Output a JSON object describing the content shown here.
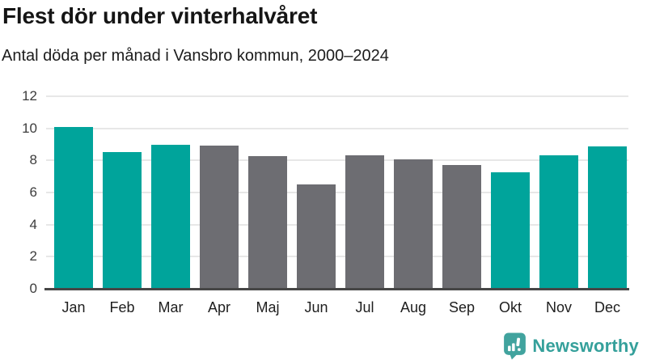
{
  "chart_data": {
    "type": "bar",
    "title": "Flest dör under vinterhalvåret",
    "subtitle": "Antal döda per månad i Vansbro kommun, 2000–2024",
    "categories": [
      "Jan",
      "Feb",
      "Mar",
      "Apr",
      "Maj",
      "Jun",
      "Jul",
      "Aug",
      "Sep",
      "Okt",
      "Nov",
      "Dec"
    ],
    "values": [
      10.1,
      8.5,
      9.0,
      8.9,
      8.25,
      6.5,
      8.3,
      8.05,
      7.7,
      7.25,
      8.3,
      8.85
    ],
    "bar_colors": [
      "#00a49b",
      "#00a49b",
      "#00a49b",
      "#6d6d72",
      "#6d6d72",
      "#6d6d72",
      "#6d6d72",
      "#6d6d72",
      "#6d6d72",
      "#00a49b",
      "#00a49b",
      "#00a49b"
    ],
    "highlight_color": "#00a49b",
    "muted_color": "#6d6d72",
    "xlabel": "",
    "ylabel": "",
    "ylim": [
      0,
      12
    ],
    "yticks": [
      0,
      2,
      4,
      6,
      8,
      10,
      12
    ],
    "grid": true,
    "legend_position": "none"
  },
  "footer": {
    "brand": "Newsworthy",
    "brand_color": "#35a09b",
    "logo_icon": "speech-bubble-bar-chart-icon"
  }
}
